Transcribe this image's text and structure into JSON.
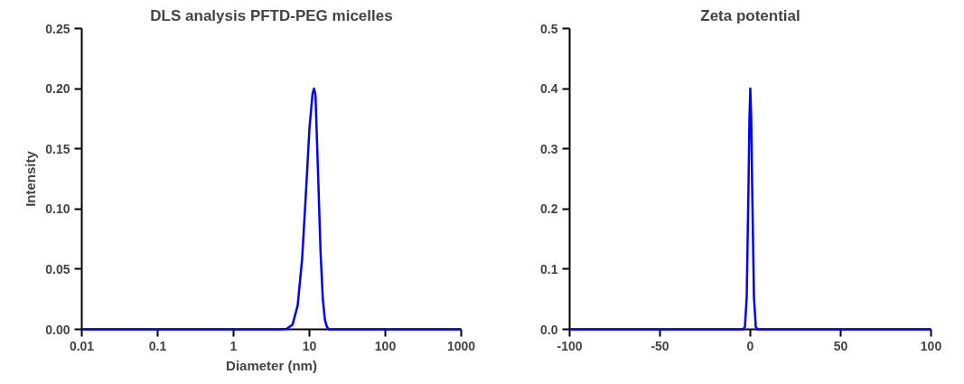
{
  "chart_data": [
    {
      "type": "line",
      "title": "DLS analysis PFTD-PEG micelles",
      "xlabel": "Diameter (nm)",
      "ylabel": "Intensity",
      "log": "x",
      "grid": false,
      "x": [
        0.01,
        0.1,
        1,
        4,
        5,
        6,
        7,
        8,
        9,
        10,
        11,
        11.5,
        12,
        13,
        14,
        15,
        16,
        17,
        18,
        100,
        1000
      ],
      "series": [
        {
          "color": "#0000ff",
          "values": [
            0,
            0,
            0,
            0,
            0.0003,
            0.004,
            0.02,
            0.058,
            0.114,
            0.167,
            0.196,
            0.2,
            0.195,
            0.129,
            0.065,
            0.025,
            0.008,
            0.002,
            0,
            0,
            0
          ]
        }
      ],
      "xlim": [
        0.01,
        1000
      ],
      "xticks": [
        0.01,
        0.1,
        1,
        10,
        100,
        1000
      ],
      "ylim": [
        0,
        0.25
      ],
      "yticks": [
        {
          "value": 0,
          "label": "0.00"
        },
        {
          "value": 0.05,
          "label": "0.05"
        },
        {
          "value": 0.1,
          "label": "0.10"
        },
        {
          "value": 0.15,
          "label": "0.15"
        },
        {
          "value": 0.2,
          "label": "0.20"
        },
        {
          "value": 0.25,
          "label": "0.25"
        }
      ]
    },
    {
      "type": "line",
      "title": "Zeta potential",
      "grid": false,
      "x": [
        -100,
        -4,
        -3,
        -2,
        -1,
        -0.5,
        0,
        0.5,
        1,
        2,
        3,
        4,
        100
      ],
      "series": [
        {
          "color": "#0000ff",
          "values": [
            0,
            0,
            0.004,
            0.054,
            0.24,
            0.35,
            0.4,
            0.35,
            0.24,
            0.054,
            0.004,
            0,
            0
          ]
        }
      ],
      "xlim": [
        -100,
        100
      ],
      "xticks": [
        -100,
        -50,
        0,
        50,
        100
      ],
      "ylim": [
        0,
        0.5
      ],
      "yticks": [
        {
          "value": 0,
          "label": "0.0"
        },
        {
          "value": 0.1,
          "label": "0.1"
        },
        {
          "value": 0.2,
          "label": "0.2"
        },
        {
          "value": 0.3,
          "label": "0.3"
        },
        {
          "value": 0.4,
          "label": "0.4"
        },
        {
          "value": 0.5,
          "label": "0.5"
        }
      ]
    }
  ]
}
